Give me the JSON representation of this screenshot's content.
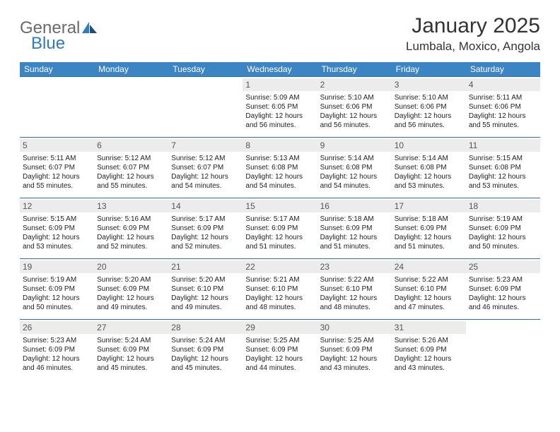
{
  "logo": {
    "word1": "General",
    "word2": "Blue"
  },
  "title": "January 2025",
  "location": "Lumbala, Moxico, Angola",
  "header_bg": "#3c85c4",
  "header_fg": "#ffffff",
  "daynum_bg": "#ececec",
  "rule_color": "#2f6ea8",
  "dow": [
    "Sunday",
    "Monday",
    "Tuesday",
    "Wednesday",
    "Thursday",
    "Friday",
    "Saturday"
  ],
  "weeks": [
    [
      {
        "n": "",
        "sr": "",
        "ss": "",
        "dl": ""
      },
      {
        "n": "",
        "sr": "",
        "ss": "",
        "dl": ""
      },
      {
        "n": "",
        "sr": "",
        "ss": "",
        "dl": ""
      },
      {
        "n": "1",
        "sr": "Sunrise: 5:09 AM",
        "ss": "Sunset: 6:05 PM",
        "dl": "Daylight: 12 hours and 56 minutes."
      },
      {
        "n": "2",
        "sr": "Sunrise: 5:10 AM",
        "ss": "Sunset: 6:06 PM",
        "dl": "Daylight: 12 hours and 56 minutes."
      },
      {
        "n": "3",
        "sr": "Sunrise: 5:10 AM",
        "ss": "Sunset: 6:06 PM",
        "dl": "Daylight: 12 hours and 56 minutes."
      },
      {
        "n": "4",
        "sr": "Sunrise: 5:11 AM",
        "ss": "Sunset: 6:06 PM",
        "dl": "Daylight: 12 hours and 55 minutes."
      }
    ],
    [
      {
        "n": "5",
        "sr": "Sunrise: 5:11 AM",
        "ss": "Sunset: 6:07 PM",
        "dl": "Daylight: 12 hours and 55 minutes."
      },
      {
        "n": "6",
        "sr": "Sunrise: 5:12 AM",
        "ss": "Sunset: 6:07 PM",
        "dl": "Daylight: 12 hours and 55 minutes."
      },
      {
        "n": "7",
        "sr": "Sunrise: 5:12 AM",
        "ss": "Sunset: 6:07 PM",
        "dl": "Daylight: 12 hours and 54 minutes."
      },
      {
        "n": "8",
        "sr": "Sunrise: 5:13 AM",
        "ss": "Sunset: 6:08 PM",
        "dl": "Daylight: 12 hours and 54 minutes."
      },
      {
        "n": "9",
        "sr": "Sunrise: 5:14 AM",
        "ss": "Sunset: 6:08 PM",
        "dl": "Daylight: 12 hours and 54 minutes."
      },
      {
        "n": "10",
        "sr": "Sunrise: 5:14 AM",
        "ss": "Sunset: 6:08 PM",
        "dl": "Daylight: 12 hours and 53 minutes."
      },
      {
        "n": "11",
        "sr": "Sunrise: 5:15 AM",
        "ss": "Sunset: 6:08 PM",
        "dl": "Daylight: 12 hours and 53 minutes."
      }
    ],
    [
      {
        "n": "12",
        "sr": "Sunrise: 5:15 AM",
        "ss": "Sunset: 6:09 PM",
        "dl": "Daylight: 12 hours and 53 minutes."
      },
      {
        "n": "13",
        "sr": "Sunrise: 5:16 AM",
        "ss": "Sunset: 6:09 PM",
        "dl": "Daylight: 12 hours and 52 minutes."
      },
      {
        "n": "14",
        "sr": "Sunrise: 5:17 AM",
        "ss": "Sunset: 6:09 PM",
        "dl": "Daylight: 12 hours and 52 minutes."
      },
      {
        "n": "15",
        "sr": "Sunrise: 5:17 AM",
        "ss": "Sunset: 6:09 PM",
        "dl": "Daylight: 12 hours and 51 minutes."
      },
      {
        "n": "16",
        "sr": "Sunrise: 5:18 AM",
        "ss": "Sunset: 6:09 PM",
        "dl": "Daylight: 12 hours and 51 minutes."
      },
      {
        "n": "17",
        "sr": "Sunrise: 5:18 AM",
        "ss": "Sunset: 6:09 PM",
        "dl": "Daylight: 12 hours and 51 minutes."
      },
      {
        "n": "18",
        "sr": "Sunrise: 5:19 AM",
        "ss": "Sunset: 6:09 PM",
        "dl": "Daylight: 12 hours and 50 minutes."
      }
    ],
    [
      {
        "n": "19",
        "sr": "Sunrise: 5:19 AM",
        "ss": "Sunset: 6:09 PM",
        "dl": "Daylight: 12 hours and 50 minutes."
      },
      {
        "n": "20",
        "sr": "Sunrise: 5:20 AM",
        "ss": "Sunset: 6:09 PM",
        "dl": "Daylight: 12 hours and 49 minutes."
      },
      {
        "n": "21",
        "sr": "Sunrise: 5:20 AM",
        "ss": "Sunset: 6:10 PM",
        "dl": "Daylight: 12 hours and 49 minutes."
      },
      {
        "n": "22",
        "sr": "Sunrise: 5:21 AM",
        "ss": "Sunset: 6:10 PM",
        "dl": "Daylight: 12 hours and 48 minutes."
      },
      {
        "n": "23",
        "sr": "Sunrise: 5:22 AM",
        "ss": "Sunset: 6:10 PM",
        "dl": "Daylight: 12 hours and 48 minutes."
      },
      {
        "n": "24",
        "sr": "Sunrise: 5:22 AM",
        "ss": "Sunset: 6:10 PM",
        "dl": "Daylight: 12 hours and 47 minutes."
      },
      {
        "n": "25",
        "sr": "Sunrise: 5:23 AM",
        "ss": "Sunset: 6:09 PM",
        "dl": "Daylight: 12 hours and 46 minutes."
      }
    ],
    [
      {
        "n": "26",
        "sr": "Sunrise: 5:23 AM",
        "ss": "Sunset: 6:09 PM",
        "dl": "Daylight: 12 hours and 46 minutes."
      },
      {
        "n": "27",
        "sr": "Sunrise: 5:24 AM",
        "ss": "Sunset: 6:09 PM",
        "dl": "Daylight: 12 hours and 45 minutes."
      },
      {
        "n": "28",
        "sr": "Sunrise: 5:24 AM",
        "ss": "Sunset: 6:09 PM",
        "dl": "Daylight: 12 hours and 45 minutes."
      },
      {
        "n": "29",
        "sr": "Sunrise: 5:25 AM",
        "ss": "Sunset: 6:09 PM",
        "dl": "Daylight: 12 hours and 44 minutes."
      },
      {
        "n": "30",
        "sr": "Sunrise: 5:25 AM",
        "ss": "Sunset: 6:09 PM",
        "dl": "Daylight: 12 hours and 43 minutes."
      },
      {
        "n": "31",
        "sr": "Sunrise: 5:26 AM",
        "ss": "Sunset: 6:09 PM",
        "dl": "Daylight: 12 hours and 43 minutes."
      },
      {
        "n": "",
        "sr": "",
        "ss": "",
        "dl": ""
      }
    ]
  ]
}
